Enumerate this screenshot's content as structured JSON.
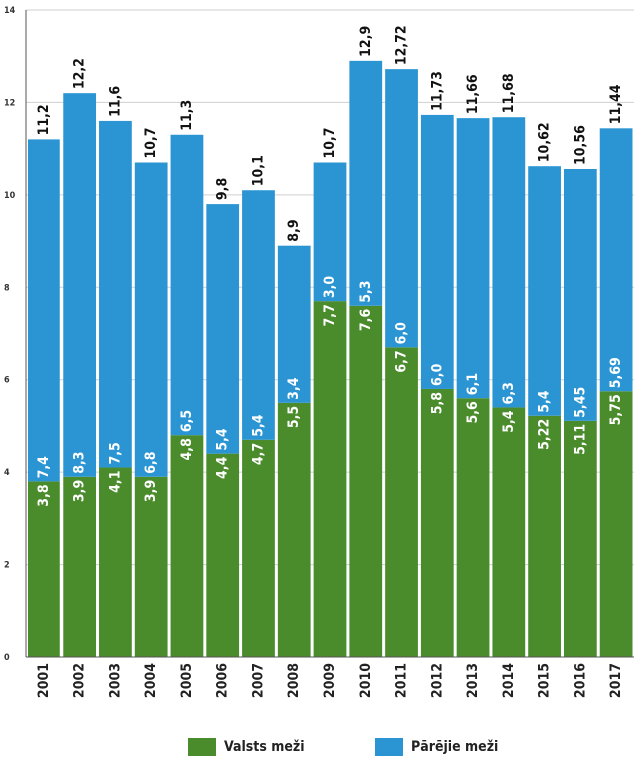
{
  "chart_data": {
    "type": "bar",
    "stacked": true,
    "categories": [
      "2001",
      "2002",
      "2003",
      "2004",
      "2005",
      "2006",
      "2007",
      "2008",
      "2009",
      "2010",
      "2011",
      "2012",
      "2013",
      "2014",
      "2015",
      "2016",
      "2017"
    ],
    "series": [
      {
        "name": "Valsts meži",
        "color": "#4a8b2c",
        "values": [
          3.8,
          3.9,
          4.1,
          3.9,
          4.8,
          4.4,
          4.7,
          5.5,
          7.7,
          7.6,
          6.7,
          5.8,
          5.6,
          5.4,
          5.22,
          5.11,
          5.75
        ],
        "labels": [
          "3,8",
          "3,9",
          "4,1",
          "3,9",
          "4,8",
          "4,4",
          "4,7",
          "5,5",
          "7,7",
          "7,6",
          "6,7",
          "5,8",
          "5,6",
          "5,4",
          "5,22",
          "5,11",
          "5,75"
        ]
      },
      {
        "name": "Pārējie meži",
        "color": "#2b95d3",
        "values": [
          7.4,
          8.3,
          7.5,
          6.8,
          6.5,
          5.4,
          5.4,
          3.4,
          3.0,
          5.3,
          6.0,
          6.0,
          6.1,
          6.3,
          5.4,
          5.45,
          5.69
        ],
        "labels": [
          "7,4",
          "8,3",
          "7,5",
          "6,8",
          "6,5",
          "5,4",
          "5,4",
          "3,4",
          "3,0",
          "5,3",
          "6,0",
          "6,0",
          "6,1",
          "6,3",
          "5,4",
          "5,45",
          "5,69"
        ]
      }
    ],
    "totals": [
      11.2,
      12.2,
      11.6,
      10.7,
      11.3,
      9.8,
      10.1,
      8.9,
      10.7,
      12.9,
      12.72,
      11.73,
      11.66,
      11.68,
      10.62,
      10.56,
      11.44
    ],
    "total_labels": [
      "11,2",
      "12,2",
      "11,6",
      "10,7",
      "11,3",
      "9,8",
      "10,1",
      "8,9",
      "10,7",
      "12,9",
      "12,72",
      "11,73",
      "11,66",
      "11,68",
      "10,62",
      "10,56",
      "11,44"
    ],
    "y_ticks": [
      "0",
      "2",
      "4",
      "6",
      "8",
      "10",
      "12",
      "14"
    ],
    "ylim": [
      0,
      14
    ],
    "grid": true,
    "legend_position": "bottom-center",
    "title": "",
    "xlabel": "",
    "ylabel": ""
  }
}
